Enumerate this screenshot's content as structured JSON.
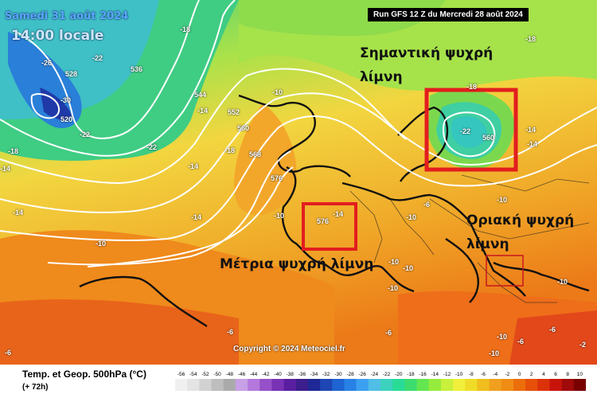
{
  "map": {
    "date": "Samedi 31 août 2024",
    "local_time": "14:00 locale",
    "run_info": "Run GFS 12 Z du Mercredi 28 août 2024",
    "copyright": "Copyright © 2024 Meteociel.fr"
  },
  "annotations": {
    "significant_lines": [
      "Σημαντική ψυχρή",
      "λίμνη"
    ],
    "moderate": "Μέτρια ψυχρή λίμνη",
    "marginal_lines": [
      "Οριακή ψυχρή",
      "λίμνη"
    ]
  },
  "highlight_boxes": [
    {
      "name": "significant-cold-pool-box",
      "color": "#e21e1e"
    },
    {
      "name": "moderate-cold-pool-box",
      "color": "#e21e1e"
    },
    {
      "name": "marginal-cold-pool-box",
      "color": "#c8171e"
    }
  ],
  "geopotential_labels": [
    "528",
    "536",
    "520",
    "544",
    "552",
    "560",
    "568",
    "576",
    "576",
    "560"
  ],
  "temperature_labels": [
    "-18",
    "-22",
    "-26",
    "-30",
    "-22",
    "-22",
    "-18",
    "-14",
    "-14",
    "-10",
    "-10",
    "-10",
    "-14",
    "-14",
    "-10",
    "-10",
    "-10",
    "-10",
    "-10",
    "-6",
    "-6",
    "-6",
    "-10",
    "-10",
    "-14",
    "-22",
    "-14",
    "-6",
    "-14",
    "-18",
    "-14",
    "-18",
    "-18",
    "-10",
    "-6",
    "-6",
    "-2"
  ],
  "legend": {
    "title": "Temp. et Geop. 500hPa (°C)",
    "subtitle": "(+ 72h)",
    "scale": [
      "-56",
      "-54",
      "-52",
      "-50",
      "-48",
      "-46",
      "-44",
      "-42",
      "-40",
      "-38",
      "-36",
      "-34",
      "-32",
      "-30",
      "-28",
      "-26",
      "-24",
      "-22",
      "-20",
      "-18",
      "-16",
      "-14",
      "-12",
      "-10",
      "-8",
      "-6",
      "-4",
      "-2",
      "0",
      "2",
      "4",
      "6",
      "8",
      "10"
    ],
    "colors": [
      "#f0f0f0",
      "#e4e4e4",
      "#d2d2d2",
      "#bebebe",
      "#aaaaaa",
      "#c8a0e6",
      "#b478dc",
      "#9650c8",
      "#7832b4",
      "#5a1ea0",
      "#3c1e8c",
      "#1e2896",
      "#1e46b4",
      "#1e64d2",
      "#2882e6",
      "#3ca0f0",
      "#50bee6",
      "#3cd2be",
      "#28dc96",
      "#3cdc6e",
      "#64e650",
      "#96ec3c",
      "#c8f03c",
      "#f0f03c",
      "#f0dc28",
      "#f0be1e",
      "#f0a01e",
      "#f08c14",
      "#ec6e0a",
      "#e6500a",
      "#dc320a",
      "#c8140a",
      "#a00a0a",
      "#780000"
    ]
  }
}
